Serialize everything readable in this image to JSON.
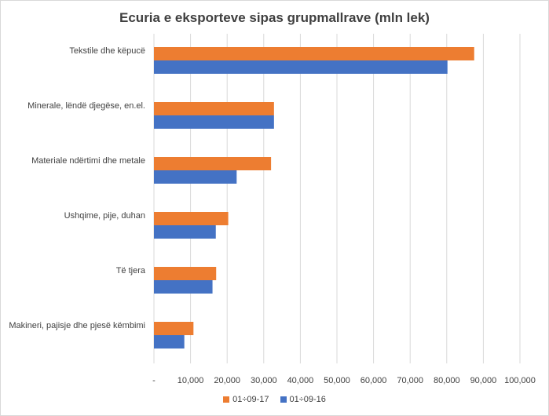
{
  "chart_data": {
    "type": "bar",
    "orientation": "horizontal",
    "title": "Ecuria e eksporteve sipas grupmallrave (mln lek)",
    "categories": [
      "Tekstile dhe këpucë",
      "Minerale, lëndë djegëse, en.el.",
      "Materiale ndërtimi dhe metale",
      "Ushqime, pije, duhan",
      "Të tjera",
      "Makineri, pajisje dhe pjesë këmbimi"
    ],
    "series": [
      {
        "name": "01÷09-17",
        "color": "#ED7D31",
        "values": [
          87500,
          32800,
          32000,
          20300,
          17000,
          10800
        ]
      },
      {
        "name": "01÷09-16",
        "color": "#4472C4",
        "values": [
          80200,
          32800,
          22600,
          16900,
          16000,
          8300
        ]
      }
    ],
    "xlim": [
      0,
      100000
    ],
    "xticks": [
      "-",
      "10,000",
      "20,000",
      "30,000",
      "40,000",
      "50,000",
      "60,000",
      "70,000",
      "80,000",
      "90,000",
      "100,000"
    ],
    "grid": true,
    "legend_position": "bottom"
  }
}
